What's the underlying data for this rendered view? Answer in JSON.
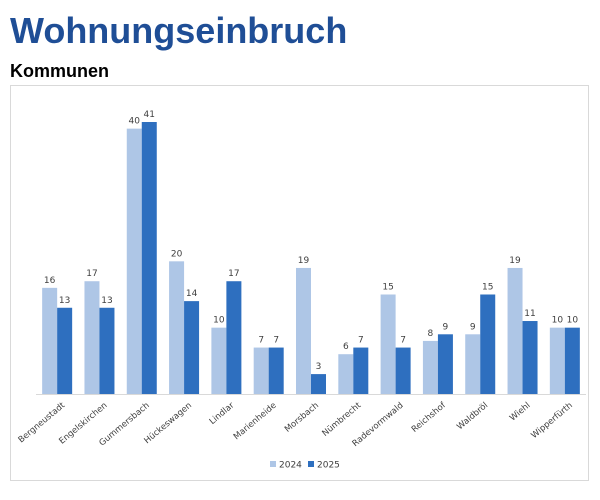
{
  "header": {
    "title": "Wohnungseinbruch",
    "subtitle": "Kommunen"
  },
  "chart_data": {
    "type": "bar",
    "title": "",
    "xlabel": "",
    "ylabel": "",
    "ylim": [
      0,
      42
    ],
    "grid": false,
    "legend": "bottom",
    "categories": [
      "Bergneustadt",
      "Engelskirchen",
      "Gummersbach",
      "Hückeswagen",
      "Lindlar",
      "Marienheide",
      "Morsbach",
      "Nümbrecht",
      "Radevormwald",
      "Reichshof",
      "Waldbröl",
      "Wiehl",
      "Wipperfürth"
    ],
    "series": [
      {
        "name": "2024",
        "color": "#aec6e6",
        "values": [
          16,
          17,
          40,
          20,
          10,
          7,
          19,
          6,
          15,
          8,
          9,
          19,
          10
        ]
      },
      {
        "name": "2025",
        "color": "#2e6fbf",
        "values": [
          13,
          13,
          41,
          14,
          17,
          7,
          3,
          7,
          7,
          9,
          15,
          11,
          10
        ]
      }
    ]
  }
}
